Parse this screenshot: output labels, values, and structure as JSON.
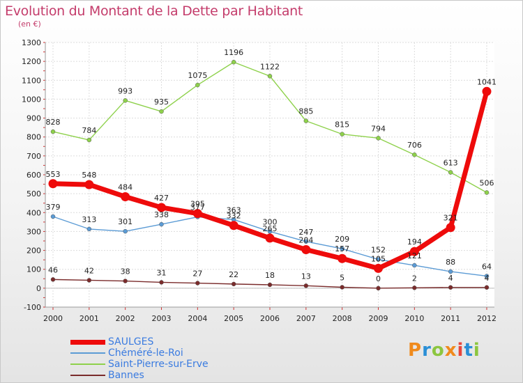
{
  "header": {
    "title": "Evolution du Montant de la Dette par Habitant",
    "subtitle": "(en €)"
  },
  "brand": {
    "letters": [
      "P",
      "r",
      "o",
      "x",
      "i",
      "t",
      "i"
    ],
    "colors": [
      "#f08a1c",
      "#2a8fd6",
      "#8cc63f",
      "#f08a1c",
      "#e8463c",
      "#2a8fd6",
      "#8cc63f"
    ]
  },
  "chart_data": {
    "type": "line",
    "x": [
      "2000",
      "2001",
      "2002",
      "2003",
      "2004",
      "2005",
      "2006",
      "2007",
      "2008",
      "2009",
      "2010",
      "2011",
      "2012"
    ],
    "ylim": [
      -100,
      1300
    ],
    "yticks": [
      -100,
      0,
      100,
      200,
      300,
      400,
      500,
      600,
      700,
      800,
      900,
      1000,
      1100,
      1200,
      1300
    ],
    "grid": true,
    "legend_position": "bottom-left",
    "series": [
      {
        "name": "Saint-Pierre-sur-Erve",
        "color": "#8ed14b",
        "values": [
          828,
          784,
          993,
          935,
          1075,
          1196,
          1122,
          885,
          815,
          794,
          706,
          613,
          506
        ],
        "bold": false
      },
      {
        "name": "Chéméré-le-Roi",
        "color": "#5b9bd5",
        "values": [
          379,
          313,
          301,
          338,
          377,
          363,
          300,
          247,
          209,
          152,
          121,
          88,
          64
        ],
        "bold": false
      },
      {
        "name": "Bannes",
        "color": "#7a2b2b",
        "values": [
          46,
          42,
          38,
          31,
          27,
          22,
          18,
          13,
          5,
          0,
          2,
          4,
          4
        ],
        "bold": false
      },
      {
        "name": "SAULGES",
        "color": "#ee0b0b",
        "values": [
          553,
          548,
          484,
          427,
          395,
          332,
          265,
          204,
          157,
          105,
          194,
          321,
          1041
        ],
        "bold": true
      }
    ],
    "legend_order": [
      "SAULGES",
      "Chéméré-le-Roi",
      "Saint-Pierre-sur-Erve",
      "Bannes"
    ]
  }
}
